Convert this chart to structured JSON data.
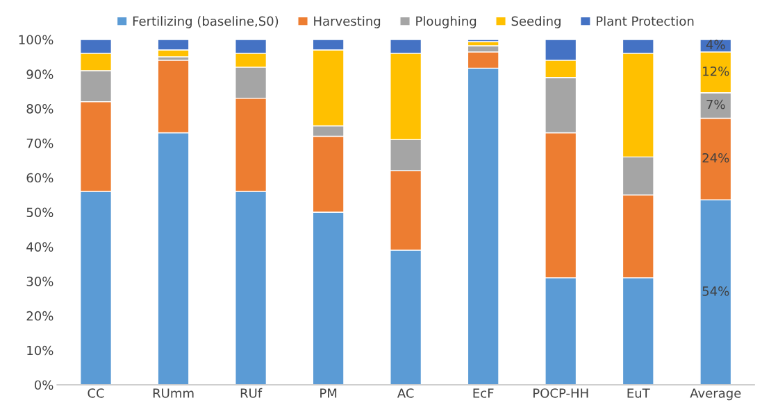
{
  "chart_data": {
    "type": "bar",
    "stacked": true,
    "categories": [
      "CC",
      "RUmm",
      "RUf",
      "PM",
      "AC",
      "EcF",
      "POCP-HH",
      "EuT",
      "Average"
    ],
    "series": [
      {
        "name": "Fertilizing (baseline,S0)",
        "color": "#5b9bd5",
        "values": [
          56,
          73,
          56,
          50,
          39,
          91.7,
          31,
          31,
          53.6
        ],
        "value_labels": [
          null,
          null,
          null,
          null,
          null,
          null,
          null,
          null,
          "54%"
        ]
      },
      {
        "name": "Harvesting",
        "color": "#ed7d31",
        "values": [
          26,
          21,
          27,
          22,
          23,
          4.7,
          42,
          24,
          23.6
        ],
        "value_labels": [
          null,
          null,
          null,
          null,
          null,
          null,
          null,
          null,
          "24%"
        ]
      },
      {
        "name": "Ploughing",
        "color": "#a5a5a5",
        "values": [
          9,
          1,
          9,
          3,
          9,
          1.8,
          16,
          11,
          7.4
        ],
        "value_labels": [
          null,
          null,
          null,
          null,
          null,
          null,
          null,
          null,
          "7%"
        ]
      },
      {
        "name": "Seeding",
        "color": "#ffc000",
        "values": [
          5,
          2,
          4,
          22,
          25,
          1.2,
          5,
          30,
          11.8
        ],
        "value_labels": [
          null,
          null,
          null,
          null,
          null,
          null,
          null,
          null,
          "12%"
        ]
      },
      {
        "name": "Plant Protection",
        "color": "#4472c4",
        "values": [
          4,
          3,
          4,
          3,
          4,
          0.6,
          6,
          4,
          3.6
        ],
        "value_labels": [
          null,
          null,
          null,
          null,
          null,
          null,
          null,
          null,
          "4%"
        ]
      }
    ],
    "ylim": [
      0,
      100
    ],
    "yticks": [
      {
        "value": 0,
        "label": "0%"
      },
      {
        "value": 10,
        "label": "10%"
      },
      {
        "value": 20,
        "label": "20%"
      },
      {
        "value": 30,
        "label": "30%"
      },
      {
        "value": 40,
        "label": "40%"
      },
      {
        "value": 50,
        "label": "50%"
      },
      {
        "value": 60,
        "label": "60%"
      },
      {
        "value": 70,
        "label": "70%"
      },
      {
        "value": 80,
        "label": "80%"
      },
      {
        "value": 90,
        "label": "90%"
      },
      {
        "value": 100,
        "label": "100%"
      }
    ],
    "grid": false,
    "legend": "top"
  }
}
